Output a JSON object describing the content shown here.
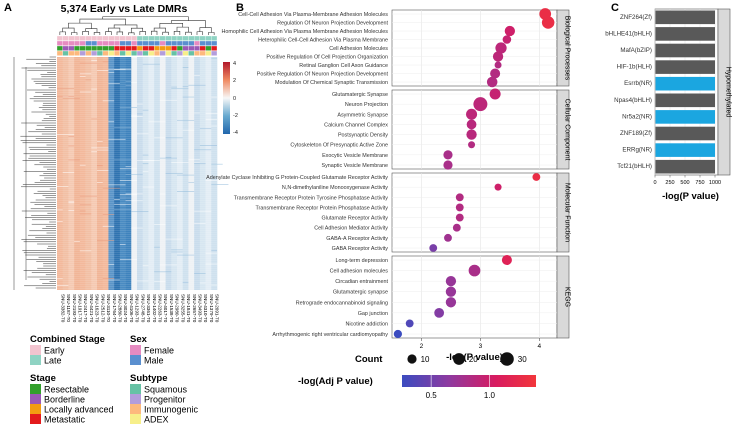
{
  "panel_labels": {
    "a": "A",
    "b": "B",
    "c": "C"
  },
  "heatmap": {
    "title": "5,374 Early vs Late DMRs",
    "scale_ticks": [
      "4",
      "2",
      "0",
      "-2",
      "-4"
    ],
    "sample_labels": [
      "SNU-3382-T0",
      "SNU-1187-T0",
      "SNU-2193-T0",
      "SNU-1917-T0",
      "SNU-2417-T0",
      "SNU-4421-T0",
      "SNU-1623-T0",
      "SNU-2512-T0",
      "SNU-3110-T0",
      "SNU-1764-T0",
      "SNU-2880-T0",
      "SNU-3024-T0",
      "SNU-4106-T0",
      "SNU-1293-T0",
      "SNU-2748-T0",
      "SNU-3361-T0",
      "SNU-1402-T0",
      "SNU-2263-T0",
      "SNU-4017-T0",
      "SNU-1538-T0",
      "SNU-2980-T0",
      "SNU-3255-T0",
      "SNU-1841-T0",
      "SNU-2657-T0",
      "SNU-3493-T0",
      "SNU-4310-T0",
      "SNU-1379-T0",
      "SNU-2091-T0"
    ]
  },
  "legend": {
    "combined_stage": {
      "title": "Combined Stage",
      "items": [
        {
          "label": "Early",
          "color": "#f2c4cf"
        },
        {
          "label": "Late",
          "color": "#8fd3c3"
        }
      ]
    },
    "sex": {
      "title": "Sex",
      "items": [
        {
          "label": "Female",
          "color": "#e68bc1"
        },
        {
          "label": "Male",
          "color": "#5a8fcf"
        }
      ]
    },
    "stage": {
      "title": "Stage",
      "items": [
        {
          "label": "Resectable",
          "color": "#33a02c"
        },
        {
          "label": "Borderline",
          "color": "#9b59b6"
        },
        {
          "label": "Locally advanced",
          "color": "#f39c12"
        },
        {
          "label": "Metastatic",
          "color": "#e31a1c"
        }
      ]
    },
    "subtype": {
      "title": "Subtype",
      "items": [
        {
          "label": "Squamous",
          "color": "#66c2a5"
        },
        {
          "label": "Progenitor",
          "color": "#b39ddb"
        },
        {
          "label": "Immunogenic",
          "color": "#fdb97d"
        },
        {
          "label": "ADEX",
          "color": "#f7ef8a"
        }
      ]
    }
  },
  "chart_data": [
    {
      "type": "scatter",
      "panel": "B",
      "xlabel": "-log(P value)",
      "xticks": [
        2,
        3,
        4
      ],
      "xlim": [
        1.5,
        4.3
      ],
      "size_legend": {
        "title": "Count",
        "values": [
          10,
          20,
          30
        ]
      },
      "color_legend": {
        "title": "-log(Adj P value)",
        "ticks": [
          0.5,
          1.0
        ],
        "range": [
          0.25,
          1.4
        ]
      },
      "facets": [
        {
          "name": "Biological Processes",
          "terms": [
            {
              "term": "Cell-Cell Adhesion Via Plasma-Membrane Adhesion Molecules",
              "x": 4.1,
              "count": 20,
              "adj": 1.3
            },
            {
              "term": "Regulation Of Neuron Projection Development",
              "x": 4.15,
              "count": 24,
              "adj": 1.3
            },
            {
              "term": "Homophilic Cell Adhesion Via Plasma Membrane Adhesion Molecules",
              "x": 3.5,
              "count": 14,
              "adj": 1.0
            },
            {
              "term": "Heterophilic Cell-Cell Adhesion Via Plasma Membrane",
              "x": 3.45,
              "count": 8,
              "adj": 0.95
            },
            {
              "term": "Cell Adhesion Molecules",
              "x": 3.35,
              "count": 18,
              "adj": 0.9
            },
            {
              "term": "Positive Regulation Of Cell Projection Organization",
              "x": 3.3,
              "count": 14,
              "adj": 0.9
            },
            {
              "term": "Retinal Ganglion Cell Axon Guidance",
              "x": 3.3,
              "count": 4,
              "adj": 0.85
            },
            {
              "term": "Positive Regulation Of Neuron Projection Development",
              "x": 3.25,
              "count": 13,
              "adj": 0.85
            },
            {
              "term": "Modulation Of Chemical Synaptic Transmission",
              "x": 3.2,
              "count": 15,
              "adj": 0.85
            }
          ]
        },
        {
          "name": "Cellular Component",
          "terms": [
            {
              "term": "Glutamatergic Synapse",
              "x": 3.25,
              "count": 17,
              "adj": 0.95
            },
            {
              "term": "Neuron Projection",
              "x": 3.0,
              "count": 32,
              "adj": 0.9
            },
            {
              "term": "Asymmetric Synapse",
              "x": 2.85,
              "count": 17,
              "adj": 0.9
            },
            {
              "term": "Calcium Channel Complex",
              "x": 2.85,
              "count": 12,
              "adj": 0.88
            },
            {
              "term": "Postsynaptic Density",
              "x": 2.85,
              "count": 14,
              "adj": 0.88
            },
            {
              "term": "Cytoskeleton Of Presynaptic Active Zone",
              "x": 2.85,
              "count": 4,
              "adj": 0.85
            },
            {
              "term": "Exocytic Vesicle Membrane",
              "x": 2.45,
              "count": 10,
              "adj": 0.8
            },
            {
              "term": "Synaptic Vesicle Membrane",
              "x": 2.45,
              "count": 10,
              "adj": 0.8
            }
          ]
        },
        {
          "name": "Molecular Function",
          "terms": [
            {
              "term": "Adenylate Cyclase Inhibiting G Protein-Coupled Glutamate Receptor Activity",
              "x": 3.95,
              "count": 6,
              "adj": 1.3
            },
            {
              "term": "N,N-dimethylaniline Monooxygenase Activity",
              "x": 3.3,
              "count": 4,
              "adj": 1.0
            },
            {
              "term": "Transmembrane Receptor Protein Tyrosine Phosphatase Activity",
              "x": 2.65,
              "count": 6,
              "adj": 0.85
            },
            {
              "term": "Transmembrane Receptor Protein Phosphatase Activity",
              "x": 2.65,
              "count": 6,
              "adj": 0.85
            },
            {
              "term": "Glutamate Receptor Activity",
              "x": 2.65,
              "count": 6,
              "adj": 0.85
            },
            {
              "term": "Cell Adhesion Mediator Activity",
              "x": 2.6,
              "count": 6,
              "adj": 0.8
            },
            {
              "term": "GABA-A Receptor Activity",
              "x": 2.45,
              "count": 6,
              "adj": 0.75
            },
            {
              "term": "GABA Receptor Activity",
              "x": 2.2,
              "count": 6,
              "adj": 0.55
            }
          ]
        },
        {
          "name": "KEGG",
          "terms": [
            {
              "term": "Long-term depression",
              "x": 3.45,
              "count": 13,
              "adj": 1.15
            },
            {
              "term": "Cell adhesion molecules",
              "x": 2.9,
              "count": 20,
              "adj": 0.8
            },
            {
              "term": "Circadian entrainment",
              "x": 2.5,
              "count": 14,
              "adj": 0.7
            },
            {
              "term": "Glutamatergic synapse",
              "x": 2.5,
              "count": 14,
              "adj": 0.7
            },
            {
              "term": "Retrograde endocannabinoid signaling",
              "x": 2.5,
              "count": 14,
              "adj": 0.7
            },
            {
              "term": "Gap junction",
              "x": 2.3,
              "count": 12,
              "adj": 0.6
            },
            {
              "term": "Nicotine addiction",
              "x": 1.8,
              "count": 6,
              "adj": 0.35
            },
            {
              "term": "Arrhythmogenic right ventricular cardiomyopathy",
              "x": 1.6,
              "count": 7,
              "adj": 0.25
            }
          ]
        }
      ]
    },
    {
      "type": "bar",
      "orientation": "horizontal",
      "panel": "C",
      "facet": "Hypomethylated",
      "xlabel": "-log(P value)",
      "xticks": [
        0,
        250,
        500,
        750,
        1000
      ],
      "xlim": [
        0,
        1050
      ],
      "categories": [
        "ZNF264(Zf)",
        "bHLHE41(bHLH)",
        "MafA(bZIP)",
        "HIF-1b(HLH)",
        "Esrrb(NR)",
        "Npas4(bHLH)",
        "Nr5a2(NR)",
        "ZNF189(Zf)",
        "ERRg(NR)",
        "Tcf21(bHLH)"
      ],
      "values": [
        1000,
        1000,
        1000,
        1000,
        1000,
        1000,
        1000,
        1000,
        1000,
        1000
      ],
      "highlight": [
        false,
        false,
        false,
        false,
        true,
        false,
        true,
        false,
        true,
        false
      ],
      "bar_color": "#595959",
      "highlight_color": "#1ba6e0"
    }
  ]
}
